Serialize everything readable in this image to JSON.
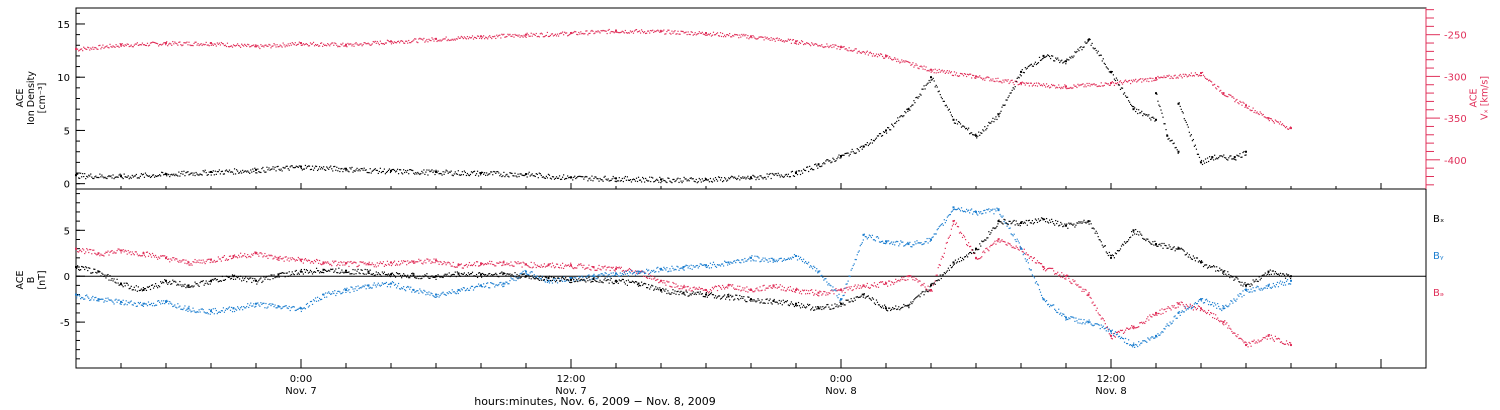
{
  "colors": {
    "black": "#000000",
    "red": "#e0305a",
    "blue": "#1e7fd0"
  },
  "x_axis": {
    "label": "hours:minutes, Nov.  6, 2009 − Nov.  8, 2009",
    "range_hours": [
      -10,
      50
    ],
    "ticks": [
      {
        "time": "0:00",
        "date": "Nov. 7",
        "hour": 0
      },
      {
        "time": "12:00",
        "date": "Nov. 7",
        "hour": 12
      },
      {
        "time": "0:00",
        "date": "Nov. 8",
        "hour": 24
      },
      {
        "time": "12:00",
        "date": "Nov. 8",
        "hour": 36
      }
    ]
  },
  "chart_data": [
    {
      "type": "scatter",
      "panel": "top",
      "left_axis": {
        "label_lines": [
          "ACE",
          "Ion Density",
          "[cm⁻³]"
        ],
        "range": [
          -0.5,
          16.5
        ],
        "ticks": [
          "0",
          "5",
          "10",
          "15"
        ]
      },
      "right_axis": {
        "label_lines": [
          "ACE",
          "Vₓ [km/s]"
        ],
        "range": [
          -435,
          -218
        ],
        "ticks": [
          "-250",
          "-300",
          "-350",
          "-400"
        ]
      },
      "series": [
        {
          "color": "black",
          "axis": "left",
          "points": [
            [
              -10,
              0.8
            ],
            [
              -8,
              0.7
            ],
            [
              -6,
              0.9
            ],
            [
              -4,
              1.1
            ],
            [
              -2,
              1.3
            ],
            [
              0,
              1.6
            ],
            [
              2,
              1.4
            ],
            [
              4,
              1.2
            ],
            [
              6,
              1.1
            ],
            [
              8,
              1.0
            ],
            [
              10,
              0.9
            ],
            [
              12,
              0.6
            ],
            [
              14,
              0.5
            ],
            [
              16,
              0.4
            ],
            [
              18,
              0.4
            ],
            [
              20,
              0.6
            ],
            [
              22,
              1.0
            ],
            [
              23,
              1.8
            ],
            [
              24,
              2.6
            ],
            [
              25,
              3.5
            ],
            [
              26,
              5.0
            ],
            [
              27,
              7.0
            ],
            [
              28,
              10.0
            ],
            [
              29,
              6.0
            ],
            [
              30,
              4.5
            ],
            [
              31,
              6.5
            ],
            [
              32,
              10.5
            ],
            [
              33,
              12.0
            ],
            [
              34,
              11.5
            ],
            [
              35,
              13.5
            ],
            [
              36,
              10.5
            ],
            [
              37,
              7.0
            ],
            [
              38,
              6.0
            ],
            [
              38.5,
              4.5
            ],
            [
              39,
              3.0
            ],
            [
              40,
              2.0
            ],
            [
              40.5,
              2.5
            ],
            [
              41.5,
              2.5
            ],
            [
              42,
              3.0
            ],
            [
              38,
              8.5
            ],
            [
              39,
              7.5
            ]
          ]
        },
        {
          "color": "red",
          "axis": "right",
          "points": [
            [
              -10,
              -267
            ],
            [
              -8,
              -262
            ],
            [
              -6,
              -260
            ],
            [
              -4,
              -260
            ],
            [
              -2,
              -264
            ],
            [
              0,
              -260
            ],
            [
              2,
              -262
            ],
            [
              4,
              -258
            ],
            [
              6,
              -255
            ],
            [
              8,
              -252
            ],
            [
              10,
              -250
            ],
            [
              12,
              -248
            ],
            [
              14,
              -245
            ],
            [
              16,
              -246
            ],
            [
              18,
              -248
            ],
            [
              20,
              -252
            ],
            [
              22,
              -258
            ],
            [
              24,
              -265
            ],
            [
              26,
              -276
            ],
            [
              28,
              -292
            ],
            [
              30,
              -300
            ],
            [
              32,
              -308
            ],
            [
              34,
              -312
            ],
            [
              36,
              -308
            ],
            [
              38,
              -302
            ],
            [
              40,
              -296
            ],
            [
              41,
              -320
            ],
            [
              42,
              -335
            ],
            [
              43,
              -350
            ],
            [
              44,
              -362
            ]
          ]
        }
      ]
    },
    {
      "type": "scatter",
      "panel": "bottom",
      "left_axis": {
        "label_lines": [
          "ACE",
          "B",
          "[nT]"
        ],
        "range": [
          -10,
          9.5
        ],
        "ticks": [
          "5",
          "0",
          "-5"
        ]
      },
      "legend": [
        "Bₓ",
        "Bᵧ",
        "Bₔ"
      ],
      "series": [
        {
          "name": "Bₓ",
          "color": "black",
          "points": [
            [
              -10,
              1.0
            ],
            [
              -9,
              0.5
            ],
            [
              -8,
              -0.8
            ],
            [
              -7,
              -1.5
            ],
            [
              -6,
              -0.5
            ],
            [
              -5,
              -1.0
            ],
            [
              -4,
              -0.5
            ],
            [
              -3,
              0.0
            ],
            [
              -2,
              -0.5
            ],
            [
              -1,
              0.2
            ],
            [
              0,
              0.5
            ],
            [
              1,
              0.7
            ],
            [
              2,
              0.6
            ],
            [
              3,
              0.5
            ],
            [
              4,
              0.2
            ],
            [
              5,
              0.1
            ],
            [
              6,
              0.0
            ],
            [
              7,
              0.3
            ],
            [
              8,
              0.2
            ],
            [
              9,
              0.3
            ],
            [
              10,
              0.0
            ],
            [
              11,
              -0.2
            ],
            [
              12,
              -0.4
            ],
            [
              13,
              -0.3
            ],
            [
              14,
              -0.5
            ],
            [
              15,
              -0.8
            ],
            [
              16,
              -1.5
            ],
            [
              17,
              -1.8
            ],
            [
              18,
              -2.0
            ],
            [
              19,
              -2.2
            ],
            [
              20,
              -2.5
            ],
            [
              21,
              -2.7
            ],
            [
              22,
              -3.0
            ],
            [
              23,
              -3.5
            ],
            [
              24,
              -3.0
            ],
            [
              25,
              -2.0
            ],
            [
              26,
              -3.5
            ],
            [
              27,
              -3.2
            ],
            [
              28,
              -1.0
            ],
            [
              29,
              1.5
            ],
            [
              30,
              3.0
            ],
            [
              31,
              6.0
            ],
            [
              32,
              5.8
            ],
            [
              33,
              6.2
            ],
            [
              34,
              5.5
            ],
            [
              35,
              6.0
            ],
            [
              36,
              2.0
            ],
            [
              37,
              5.0
            ],
            [
              38,
              3.5
            ],
            [
              39,
              3.0
            ],
            [
              40,
              1.5
            ],
            [
              41,
              0.5
            ],
            [
              42,
              -1.0
            ],
            [
              43,
              0.5
            ],
            [
              44,
              0.0
            ]
          ]
        },
        {
          "name": "Bᵧ",
          "color": "blue",
          "points": [
            [
              -10,
              -2.0
            ],
            [
              -9,
              -2.5
            ],
            [
              -8,
              -2.8
            ],
            [
              -7,
              -3.0
            ],
            [
              -6,
              -2.8
            ],
            [
              -5,
              -3.5
            ],
            [
              -4,
              -3.8
            ],
            [
              -3,
              -3.5
            ],
            [
              -2,
              -3.0
            ],
            [
              -1,
              -3.3
            ],
            [
              0,
              -3.5
            ],
            [
              1,
              -2.0
            ],
            [
              2,
              -1.5
            ],
            [
              3,
              -1.0
            ],
            [
              4,
              -0.8
            ],
            [
              5,
              -1.5
            ],
            [
              6,
              -2.0
            ],
            [
              7,
              -1.5
            ],
            [
              8,
              -1.0
            ],
            [
              9,
              -0.8
            ],
            [
              10,
              0.5
            ],
            [
              11,
              -0.5
            ],
            [
              12,
              -0.2
            ],
            [
              13,
              0.0
            ],
            [
              14,
              0.3
            ],
            [
              15,
              0.5
            ],
            [
              16,
              0.8
            ],
            [
              17,
              1.0
            ],
            [
              18,
              1.2
            ],
            [
              19,
              1.5
            ],
            [
              20,
              2.0
            ],
            [
              21,
              1.8
            ],
            [
              22,
              2.2
            ],
            [
              23,
              0.5
            ],
            [
              24,
              -2.5
            ],
            [
              25,
              4.5
            ],
            [
              26,
              3.8
            ],
            [
              27,
              3.5
            ],
            [
              28,
              4.0
            ],
            [
              29,
              7.5
            ],
            [
              30,
              7.0
            ],
            [
              31,
              7.2
            ],
            [
              32,
              3.0
            ],
            [
              33,
              -2.5
            ],
            [
              34,
              -4.5
            ],
            [
              35,
              -5.0
            ],
            [
              36,
              -6.0
            ],
            [
              37,
              -7.5
            ],
            [
              38,
              -6.5
            ],
            [
              39,
              -4.0
            ],
            [
              40,
              -2.5
            ],
            [
              41,
              -3.5
            ],
            [
              42,
              -1.5
            ],
            [
              43,
              -1.0
            ],
            [
              44,
              -0.5
            ]
          ]
        },
        {
          "name": "Bₔ",
          "color": "red",
          "points": [
            [
              -10,
              3.0
            ],
            [
              -9,
              2.5
            ],
            [
              -8,
              2.8
            ],
            [
              -7,
              2.5
            ],
            [
              -6,
              2.0
            ],
            [
              -5,
              1.5
            ],
            [
              -4,
              1.8
            ],
            [
              -3,
              2.2
            ],
            [
              -2,
              2.5
            ],
            [
              -1,
              2.0
            ],
            [
              0,
              1.8
            ],
            [
              1,
              1.5
            ],
            [
              2,
              1.4
            ],
            [
              3,
              1.3
            ],
            [
              4,
              1.5
            ],
            [
              5,
              1.6
            ],
            [
              6,
              1.7
            ],
            [
              7,
              1.2
            ],
            [
              8,
              1.4
            ],
            [
              9,
              1.5
            ],
            [
              10,
              1.3
            ],
            [
              11,
              1.2
            ],
            [
              12,
              1.2
            ],
            [
              13,
              1.0
            ],
            [
              14,
              0.8
            ],
            [
              15,
              0.5
            ],
            [
              16,
              -0.5
            ],
            [
              17,
              -1.2
            ],
            [
              18,
              -1.5
            ],
            [
              19,
              -1.0
            ],
            [
              20,
              -1.5
            ],
            [
              21,
              -1.0
            ],
            [
              22,
              -1.5
            ],
            [
              23,
              -1.8
            ],
            [
              24,
              -1.5
            ],
            [
              25,
              -1.0
            ],
            [
              26,
              -0.8
            ],
            [
              27,
              0.0
            ],
            [
              28,
              -1.5
            ],
            [
              29,
              6.0
            ],
            [
              30,
              2.0
            ],
            [
              31,
              4.0
            ],
            [
              32,
              3.0
            ],
            [
              33,
              1.0
            ],
            [
              34,
              0.0
            ],
            [
              35,
              -2.0
            ],
            [
              36,
              -6.5
            ],
            [
              37,
              -5.5
            ],
            [
              38,
              -4.0
            ],
            [
              39,
              -3.0
            ],
            [
              40,
              -3.5
            ],
            [
              41,
              -5.0
            ],
            [
              42,
              -7.5
            ],
            [
              43,
              -6.5
            ],
            [
              44,
              -7.5
            ]
          ]
        }
      ]
    }
  ]
}
